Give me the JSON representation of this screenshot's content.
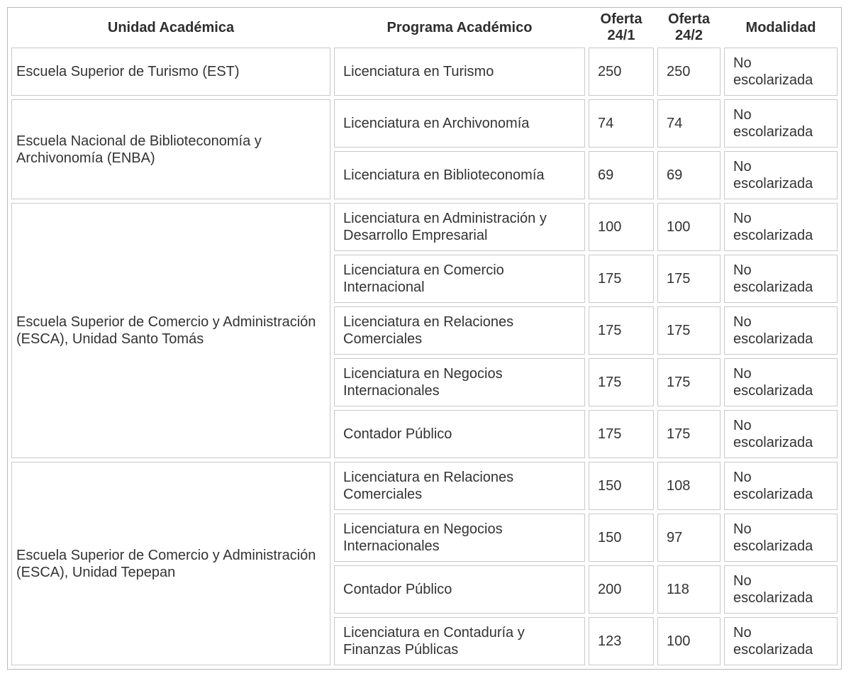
{
  "table": {
    "headers": [
      "Unidad Académica",
      "Programa Académico",
      "Oferta 24/1",
      "Oferta 24/2",
      "Modalidad"
    ],
    "groups": [
      {
        "unit": "Escuela Superior de Turismo (EST)",
        "programs": [
          {
            "name": "Licenciatura en Turismo",
            "oferta_24_1": "250",
            "oferta_24_2": "250",
            "modalidad": "No escolarizada"
          }
        ]
      },
      {
        "unit": "Escuela Nacional de Biblioteconomía y Archivonomía (ENBA)",
        "programs": [
          {
            "name": "Licenciatura en Archivonomía",
            "oferta_24_1": "74",
            "oferta_24_2": "74",
            "modalidad": "No escolarizada"
          },
          {
            "name": "Licenciatura en Biblioteconomía",
            "oferta_24_1": "69",
            "oferta_24_2": "69",
            "modalidad": "No escolarizada"
          }
        ]
      },
      {
        "unit": "Escuela Superior de Comercio y Administración (ESCA), Unidad Santo Tomás",
        "programs": [
          {
            "name": "Licenciatura en Administración y Desarrollo Empresarial",
            "oferta_24_1": "100",
            "oferta_24_2": "100",
            "modalidad": "No escolarizada"
          },
          {
            "name": "Licenciatura en Comercio Internacional",
            "oferta_24_1": "175",
            "oferta_24_2": "175",
            "modalidad": "No escolarizada"
          },
          {
            "name": "Licenciatura en Relaciones Comerciales",
            "oferta_24_1": "175",
            "oferta_24_2": "175",
            "modalidad": "No escolarizada"
          },
          {
            "name": "Licenciatura en Negocios Internacionales",
            "oferta_24_1": "175",
            "oferta_24_2": "175",
            "modalidad": "No escolarizada"
          },
          {
            "name": "Contador Público",
            "oferta_24_1": "175",
            "oferta_24_2": "175",
            "modalidad": "No escolarizada"
          }
        ]
      },
      {
        "unit": "Escuela Superior de Comercio y Administración (ESCA), Unidad Tepepan",
        "programs": [
          {
            "name": "Licenciatura en Relaciones Comerciales",
            "oferta_24_1": "150",
            "oferta_24_2": "108",
            "modalidad": "No escolarizada"
          },
          {
            "name": "Licenciatura en Negocios Internacionales",
            "oferta_24_1": "150",
            "oferta_24_2": "97",
            "modalidad": "No escolarizada"
          },
          {
            "name": "Contador Público",
            "oferta_24_1": "200",
            "oferta_24_2": "118",
            "modalidad": "No escolarizada"
          },
          {
            "name": "Licenciatura en Contaduría y Finanzas Públicas",
            "oferta_24_1": "123",
            "oferta_24_2": "100",
            "modalidad": "No escolarizada"
          }
        ]
      }
    ],
    "colors": {
      "cell_border": "#c9c9c9",
      "outer_border": "#b9b9b9",
      "text": "#333333",
      "background": "#ffffff"
    }
  }
}
